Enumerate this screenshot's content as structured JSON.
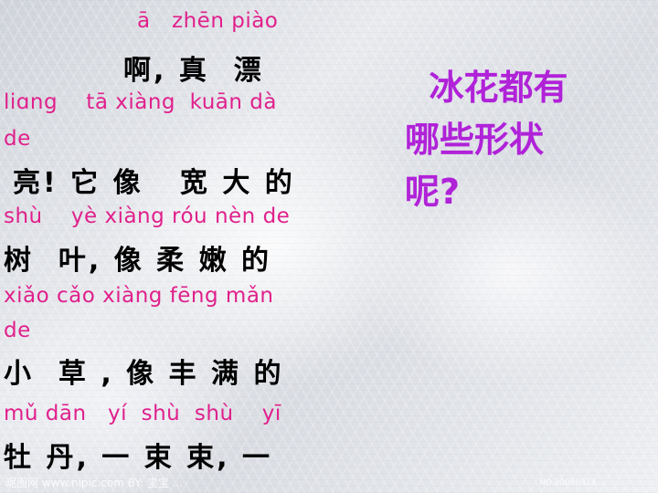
{
  "slide": {
    "lines": [
      {
        "kind": "pinyin",
        "text": "ā   zhēn piào"
      },
      {
        "kind": "hanzi",
        "text": "啊, 真  漂"
      },
      {
        "kind": "pinyin",
        "text": "liɑng    tā xiàng  kuān dà"
      },
      {
        "kind": "pinyin",
        "text": "de"
      },
      {
        "kind": "hanzi",
        "text": "亮! 它 像   宽 大 的"
      },
      {
        "kind": "pinyin",
        "text": "shù    yè xiàng róu nèn de"
      },
      {
        "kind": "hanzi",
        "text": "树  叶, 像 柔 嫩 的"
      },
      {
        "kind": "pinyin",
        "text": "xiǎo cǎo xiàng fēng mǎn"
      },
      {
        "kind": "pinyin",
        "text": "de"
      },
      {
        "kind": "hanzi",
        "text": "小  草 , 像 丰 满 的"
      },
      {
        "kind": "pinyin",
        "text": "mǔ dān   yí  shù  shù    yī"
      },
      {
        "kind": "hanzi",
        "text": "牡 丹, 一 束 束, 一"
      }
    ],
    "question": [
      "  冰花都有",
      "哪些形状",
      "呢?"
    ],
    "colors": {
      "pinyin": "#e0208c",
      "hanzi": "#000000",
      "question": "#b022d8"
    }
  }
}
